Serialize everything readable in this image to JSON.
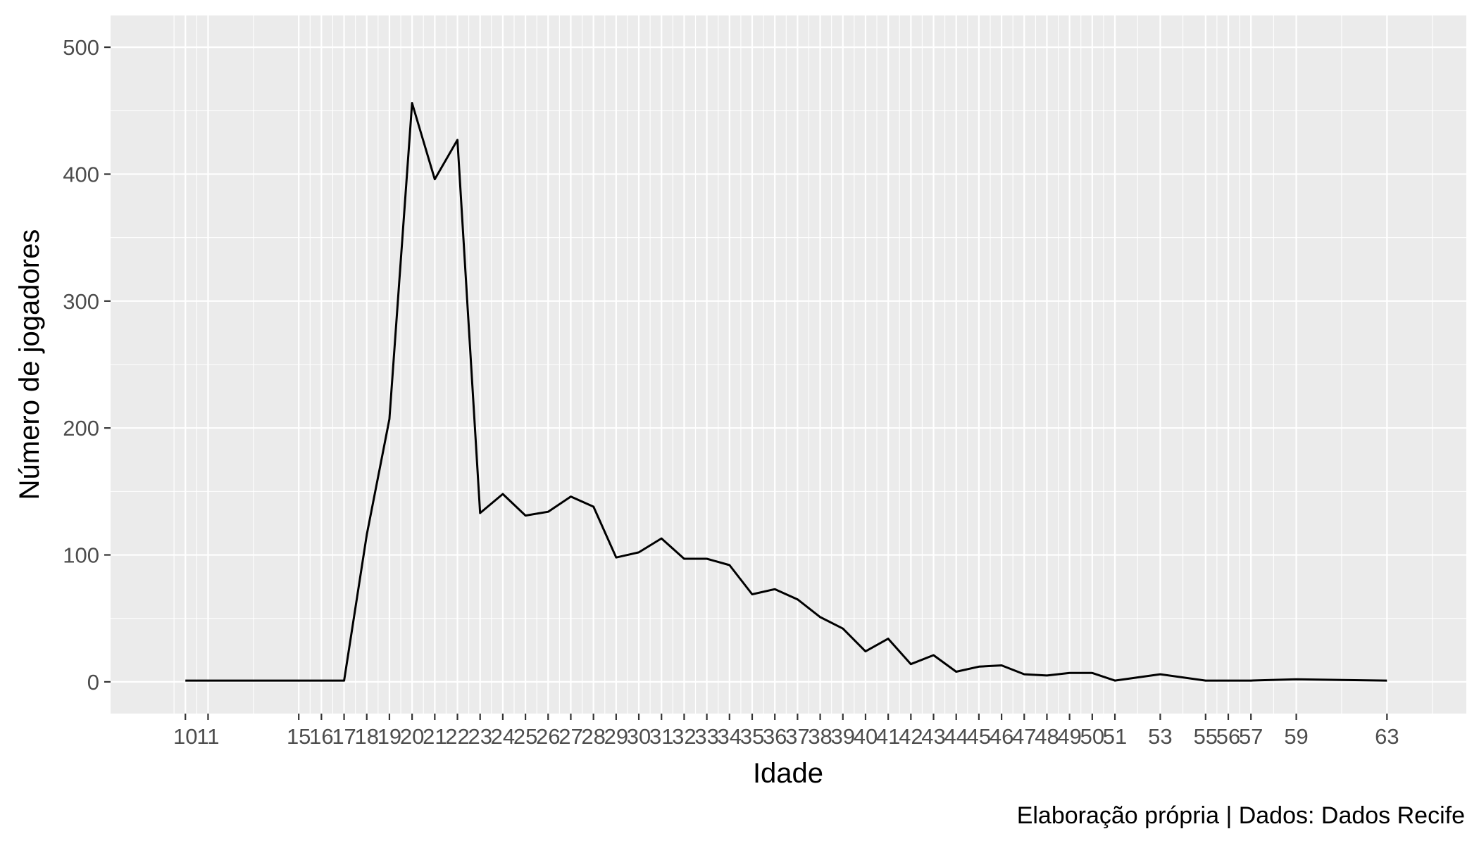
{
  "chart_data": {
    "type": "line",
    "title": "",
    "xlabel": "Idade",
    "ylabel": "Número de jogadores",
    "caption": "Elaboração própria | Dados: Dados Recife",
    "xlim": [
      6.7,
      66.5
    ],
    "ylim": [
      -25,
      525
    ],
    "y_ticks": [
      0,
      100,
      200,
      300,
      400,
      500
    ],
    "x_ticks": [
      10,
      11,
      15,
      16,
      17,
      18,
      19,
      20,
      21,
      22,
      23,
      24,
      25,
      26,
      27,
      28,
      29,
      30,
      31,
      32,
      33,
      34,
      35,
      36,
      37,
      38,
      39,
      40,
      41,
      42,
      43,
      44,
      45,
      46,
      47,
      48,
      49,
      50,
      51,
      53,
      55,
      56,
      57,
      59,
      63
    ],
    "grid": true,
    "background": "#ebebeb",
    "line_color": "#000000",
    "series": [
      {
        "x": [
          10,
          11,
          15,
          16,
          17,
          18,
          19,
          20,
          21,
          22,
          23,
          24,
          25,
          26,
          27,
          28,
          29,
          30,
          31,
          32,
          33,
          34,
          35,
          36,
          37,
          38,
          39,
          40,
          41,
          42,
          43,
          44,
          45,
          46,
          47,
          48,
          49,
          50,
          51,
          53,
          55,
          56,
          57,
          59,
          63
        ],
        "values": [
          1,
          1,
          1,
          1,
          1,
          116,
          207,
          456,
          396,
          427,
          133,
          148,
          131,
          134,
          146,
          138,
          98,
          102,
          113,
          97,
          97,
          92,
          69,
          73,
          65,
          51,
          42,
          24,
          34,
          14,
          21,
          8,
          12,
          13,
          6,
          5,
          7,
          7,
          1,
          6,
          1,
          1,
          1,
          2,
          1
        ]
      }
    ]
  }
}
